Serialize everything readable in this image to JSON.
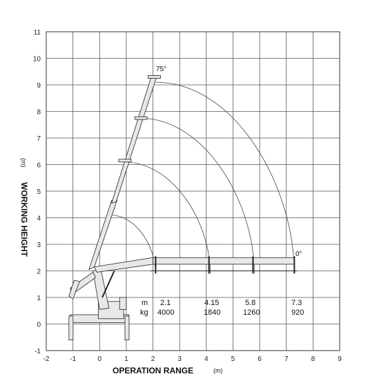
{
  "chart_data": {
    "type": "diagram",
    "xlabel": "OPERATION RANGE",
    "xlabel_unit": "(m)",
    "ylabel": "WORKING HEIGHT",
    "ylabel_unit": "(m)",
    "xlim": [
      -2,
      9
    ],
    "ylim": [
      -1,
      11
    ],
    "x_ticks": [
      -2,
      -1,
      0,
      1,
      2,
      3,
      4,
      5,
      6,
      7,
      8,
      9
    ],
    "y_ticks": [
      -1,
      0,
      1,
      2,
      3,
      4,
      5,
      6,
      7,
      8,
      9,
      10,
      11
    ],
    "grid": true,
    "angle_labels": {
      "max": "75°",
      "min": "0°"
    },
    "load_table": {
      "row_labels": [
        "m",
        "kg"
      ],
      "columns": [
        {
          "reach": "2.1",
          "load": "4000"
        },
        {
          "reach": "4.15",
          "load": "1840"
        },
        {
          "reach": "5.8",
          "load": "1260"
        },
        {
          "reach": "7.3",
          "load": "920"
        }
      ]
    },
    "range_arcs": [
      {
        "horizontal_reach": 2.1,
        "vertical_tip_x": 0.4,
        "vertical_tip_y": 4.1
      },
      {
        "horizontal_reach": 4.15,
        "vertical_tip_x": 0.9,
        "vertical_tip_y": 6.1
      },
      {
        "horizontal_reach": 5.8,
        "vertical_tip_x": 1.5,
        "vertical_tip_y": 7.75
      },
      {
        "horizontal_reach": 7.3,
        "vertical_tip_x": 2.1,
        "vertical_tip_y": 9.1
      }
    ]
  }
}
